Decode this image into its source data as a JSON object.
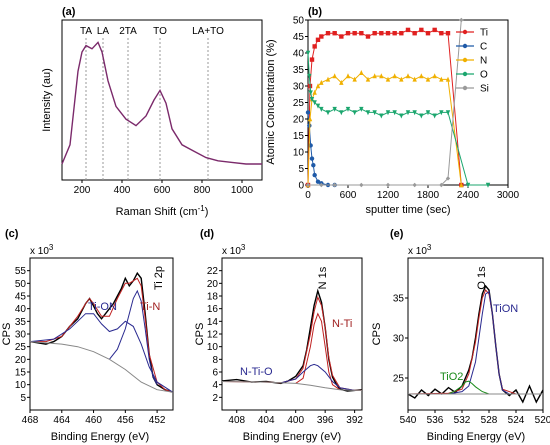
{
  "chart_data": [
    {
      "panel_label": "(a)",
      "type": "line",
      "xlabel": "Raman Shift (cm",
      "xlabel_sup": "-1",
      "xlabel_tail": ")",
      "ylabel": "Intensity (au)",
      "xlim": [
        100,
        1100
      ],
      "xticks": [
        200,
        400,
        600,
        800,
        1000
      ],
      "peak_lines": [
        {
          "label": "TA",
          "x": 220
        },
        {
          "label": "LA",
          "x": 305
        },
        {
          "label": "2TA",
          "x": 430
        },
        {
          "label": "TO",
          "x": 590
        },
        {
          "label": "LA+TO",
          "x": 830
        }
      ],
      "series": [
        {
          "color": "#7b2a6b",
          "x": [
            100,
            140,
            180,
            200,
            220,
            250,
            280,
            300,
            330,
            370,
            420,
            470,
            520,
            560,
            590,
            620,
            650,
            700,
            760,
            820,
            880,
            950,
            1020,
            1100
          ],
          "y": [
            0.1,
            0.22,
            0.68,
            0.8,
            0.84,
            0.82,
            0.86,
            0.8,
            0.62,
            0.46,
            0.38,
            0.34,
            0.4,
            0.5,
            0.56,
            0.48,
            0.32,
            0.22,
            0.18,
            0.14,
            0.12,
            0.11,
            0.1,
            0.1
          ]
        }
      ]
    },
    {
      "panel_label": "(b)",
      "type": "line",
      "xlabel": "sputter time (sec)",
      "ylabel": "Atomic Concentration (%)",
      "xlim": [
        0,
        3000
      ],
      "ylim": [
        0,
        50
      ],
      "xticks": [
        0,
        600,
        1200,
        1800,
        2400,
        3000
      ],
      "yticks": [
        0,
        5,
        10,
        15,
        20,
        25,
        30,
        35,
        40,
        45,
        50
      ],
      "legend_position": "right",
      "series": [
        {
          "name": "Ti",
          "color": "#e02020",
          "marker": "square",
          "x": [
            0,
            30,
            60,
            100,
            150,
            200,
            300,
            400,
            500,
            600,
            700,
            800,
            900,
            1000,
            1100,
            1200,
            1300,
            1400,
            1500,
            1600,
            1700,
            1800,
            1900,
            2000,
            2100,
            2300
          ],
          "y": [
            0,
            30,
            38,
            42,
            44,
            45,
            46,
            46,
            45,
            46,
            46,
            46,
            45,
            46,
            46,
            46,
            46,
            46,
            47,
            46,
            47,
            46,
            47,
            46,
            46,
            0
          ]
        },
        {
          "name": "C",
          "color": "#1f5aa8",
          "marker": "circle",
          "x": [
            0,
            20,
            40,
            60,
            80,
            100,
            150,
            200,
            300,
            400
          ],
          "y": [
            22,
            18,
            12,
            8,
            6,
            3,
            1,
            0.5,
            0,
            0
          ]
        },
        {
          "name": "N",
          "color": "#f0b000",
          "marker": "triangle-up",
          "x": [
            0,
            30,
            60,
            100,
            150,
            200,
            300,
            400,
            500,
            600,
            700,
            800,
            900,
            1000,
            1100,
            1200,
            1300,
            1400,
            1500,
            1600,
            1700,
            1800,
            1900,
            2000,
            2100,
            2300
          ],
          "y": [
            0,
            20,
            26,
            28,
            30,
            31,
            32,
            33,
            31,
            33,
            32,
            34,
            32,
            33,
            33,
            32,
            33,
            32,
            33,
            32,
            33,
            32,
            33,
            32,
            32,
            0
          ]
        },
        {
          "name": "O",
          "color": "#1ba66e",
          "marker": "triangle-down",
          "x": [
            0,
            20,
            40,
            60,
            100,
            150,
            200,
            300,
            400,
            500,
            600,
            700,
            800,
            900,
            1000,
            1100,
            1200,
            1300,
            1400,
            1500,
            1600,
            1700,
            1800,
            1900,
            2000,
            2100,
            2400,
            2700
          ],
          "y": [
            40,
            33,
            28,
            26,
            25,
            24,
            23,
            22,
            23,
            22,
            23,
            22,
            23,
            22,
            22,
            21,
            22,
            22,
            21,
            22,
            22,
            21,
            22,
            21,
            22,
            22,
            0,
            0
          ]
        },
        {
          "name": "Si",
          "color": "#9a9a9a",
          "marker": "diamond",
          "x": [
            0,
            200,
            400,
            800,
            1200,
            1600,
            2000,
            2100,
            2300
          ],
          "y": [
            0,
            0,
            0,
            0,
            0,
            0,
            0,
            2,
            50
          ]
        }
      ]
    },
    {
      "panel_label": "(c)",
      "type": "line",
      "xlabel": "Binding Energy (eV)",
      "ylabel": "CPS",
      "y_multiplier": "x 10",
      "y_multiplier_exp": "3",
      "xlim": [
        468,
        450
      ],
      "ylim": [
        0,
        60
      ],
      "xticks": [
        468,
        464,
        460,
        456,
        452
      ],
      "yticks": [
        5,
        10,
        15,
        20,
        25,
        30,
        35,
        40,
        45,
        50,
        55
      ],
      "annotations": [
        {
          "text": "Ti 2p",
          "color": "#000000"
        },
        {
          "text": "Ti-ON",
          "color": "#2a2a90"
        },
        {
          "text": "Ti-N",
          "color": "#a02020"
        }
      ],
      "series": [
        {
          "role": "data",
          "color": "#000000",
          "x": [
            468,
            466,
            465,
            464,
            463,
            462,
            461,
            460.5,
            460,
            459.5,
            459,
            458.5,
            458,
            457.5,
            457,
            456.5,
            456,
            455.5,
            455,
            454.5,
            454,
            453.5,
            453,
            452.5,
            452,
            451,
            450
          ],
          "y": [
            27,
            26,
            27,
            29,
            33,
            36,
            42,
            44,
            41,
            38,
            36,
            38,
            40,
            42,
            45,
            48,
            52,
            49,
            51,
            54,
            52,
            38,
            22,
            13,
            10,
            8,
            7
          ]
        },
        {
          "role": "envelope",
          "color": "#c02020",
          "x": [
            468,
            466,
            464,
            463,
            462,
            461,
            460.5,
            460,
            459,
            458,
            457,
            456,
            455.5,
            455,
            454.5,
            454,
            453.5,
            453,
            452,
            451,
            450
          ],
          "y": [
            27,
            27,
            29,
            33,
            37,
            42,
            44,
            42,
            37,
            37,
            44,
            50,
            50,
            51,
            52,
            49,
            36,
            22,
            11,
            8,
            7
          ]
        },
        {
          "role": "Ti-ON",
          "color": "#2a2a90",
          "x": [
            468,
            465,
            463,
            462,
            461,
            460,
            459,
            458,
            457,
            456,
            455,
            454,
            453,
            452,
            450
          ],
          "y": [
            27,
            28,
            32,
            35,
            38,
            38,
            34,
            31,
            32,
            35,
            33,
            26,
            17,
            11,
            7
          ]
        },
        {
          "role": "Ti-N",
          "color": "#2a2a90",
          "x": [
            458,
            457,
            456,
            455.5,
            455,
            454.5,
            454,
            453.5,
            453,
            452.5,
            452
          ],
          "y": [
            20,
            24,
            32,
            38,
            44,
            47,
            43,
            32,
            20,
            13,
            10
          ]
        },
        {
          "role": "background",
          "color": "#888888",
          "x": [
            468,
            466,
            464,
            462,
            460,
            458,
            456,
            454,
            452,
            450
          ],
          "y": [
            27,
            26.5,
            26,
            25,
            23,
            20,
            16,
            11,
            8,
            7
          ]
        }
      ]
    },
    {
      "panel_label": "(d)",
      "type": "line",
      "xlabel": "Binding Energy (eV)",
      "ylabel": "CPS",
      "y_multiplier": "x 10",
      "y_multiplier_exp": "3",
      "xlim": [
        410,
        391
      ],
      "ylim": [
        0,
        24
      ],
      "xticks": [
        408,
        404,
        400,
        396,
        392
      ],
      "yticks": [
        2,
        4,
        6,
        8,
        10,
        12,
        14,
        16,
        18,
        20,
        22
      ],
      "annotations": [
        {
          "text": "N 1s",
          "color": "#000000"
        },
        {
          "text": "N-Ti",
          "color": "#a02020"
        },
        {
          "text": "N-Ti-O",
          "color": "#2a2a90"
        }
      ],
      "series": [
        {
          "role": "data",
          "color": "#000000",
          "x": [
            410,
            408,
            406,
            404,
            402,
            401,
            400,
            399,
            398.5,
            398,
            397.5,
            397,
            396.5,
            396,
            395.5,
            395,
            394.5,
            394,
            393,
            392,
            391
          ],
          "y": [
            4.6,
            4.8,
            4.4,
            4.5,
            4.2,
            4.6,
            5.3,
            7.0,
            9.5,
            13,
            16.5,
            18.8,
            17,
            13,
            8,
            5.2,
            4.1,
            3.3,
            3.0,
            3.1,
            3.2
          ]
        },
        {
          "role": "envelope",
          "color": "#c02020",
          "x": [
            410,
            404,
            402,
            400,
            399,
            398,
            397.5,
            397,
            396.5,
            396,
            395.5,
            395,
            394,
            392,
            391
          ],
          "y": [
            4.5,
            4.4,
            4.3,
            4.9,
            6.6,
            12,
            15.5,
            17.8,
            16.5,
            13,
            8.3,
            5.5,
            3.5,
            3.1,
            3.1
          ]
        },
        {
          "role": "N-Ti",
          "color": "#c02020",
          "x": [
            400,
            399,
            398,
            397.5,
            397,
            396.5,
            396,
            395.5,
            395,
            394
          ],
          "y": [
            4.2,
            5,
            10,
            13.5,
            15.2,
            14,
            10,
            6,
            4,
            3.2
          ]
        },
        {
          "role": "N-Ti-O",
          "color": "#2a2a90",
          "x": [
            402,
            400,
            399,
            398,
            397.5,
            397,
            396,
            395,
            394,
            392
          ],
          "y": [
            4.3,
            4.9,
            6,
            7,
            7.2,
            7,
            6,
            4.5,
            3.5,
            3.1
          ]
        },
        {
          "role": "background",
          "color": "#888888",
          "x": [
            410,
            404,
            400,
            398,
            396,
            394,
            392,
            391
          ],
          "y": [
            4.5,
            4.4,
            4.2,
            3.9,
            3.5,
            3.2,
            3.1,
            3.1
          ]
        }
      ]
    },
    {
      "panel_label": "(e)",
      "type": "line",
      "xlabel": "Binding Energy (eV)",
      "ylabel": "CPS",
      "y_multiplier": "x 10",
      "y_multiplier_exp": "3",
      "xlim": [
        540,
        520
      ],
      "ylim": [
        21,
        40
      ],
      "xticks": [
        540,
        536,
        532,
        528,
        524,
        520
      ],
      "yticks": [
        25,
        30,
        35
      ],
      "annotations": [
        {
          "text": "O 1s",
          "color": "#000000"
        },
        {
          "text": "TiON",
          "color": "#2a2a90"
        },
        {
          "text": "TiO2",
          "color": "#1a8a1a"
        }
      ],
      "series": [
        {
          "role": "data",
          "color": "#000000",
          "x": [
            540,
            539,
            538,
            537,
            536,
            535,
            534,
            533,
            532,
            531.5,
            531,
            530.5,
            530,
            529.5,
            529,
            528.5,
            528,
            527.5,
            527,
            526.5,
            526,
            525,
            524,
            523,
            522,
            521,
            520
          ],
          "y": [
            23,
            22.5,
            23.5,
            22.8,
            23.6,
            23,
            23.8,
            23.2,
            24,
            25,
            26,
            27.5,
            30,
            33,
            35.5,
            36.5,
            36,
            33,
            29,
            25.5,
            23.5,
            22.8,
            23.5,
            22,
            24,
            22,
            23.5
          ]
        },
        {
          "role": "envelope",
          "color": "#c02020",
          "x": [
            540,
            534,
            532,
            531,
            530,
            529.5,
            529,
            528.5,
            528,
            527.5,
            527,
            526.5,
            526,
            524,
            520
          ],
          "y": [
            23,
            23.1,
            23.6,
            25.5,
            29.5,
            32.5,
            35,
            36,
            35.5,
            33,
            29,
            25.5,
            23.6,
            23,
            23
          ]
        },
        {
          "role": "TiON",
          "color": "#2a2a90",
          "x": [
            534,
            532,
            531,
            530,
            529.5,
            529,
            528.5,
            528,
            527.5,
            527,
            526.5,
            526,
            525,
            524
          ],
          "y": [
            23,
            23.3,
            24,
            27,
            30,
            33,
            35.5,
            35.8,
            33,
            29,
            25.5,
            23.5,
            23,
            23
          ]
        },
        {
          "role": "TiO2",
          "color": "#1a8a1a",
          "x": [
            534,
            533,
            532,
            531.5,
            531,
            530.5,
            530,
            529,
            528,
            527
          ],
          "y": [
            23,
            23.4,
            24,
            24.5,
            24.6,
            24.3,
            23.9,
            23.3,
            23,
            23
          ]
        },
        {
          "role": "background",
          "color": "#888888",
          "x": [
            540,
            530,
            520
          ],
          "y": [
            23,
            23,
            23
          ]
        }
      ]
    }
  ]
}
